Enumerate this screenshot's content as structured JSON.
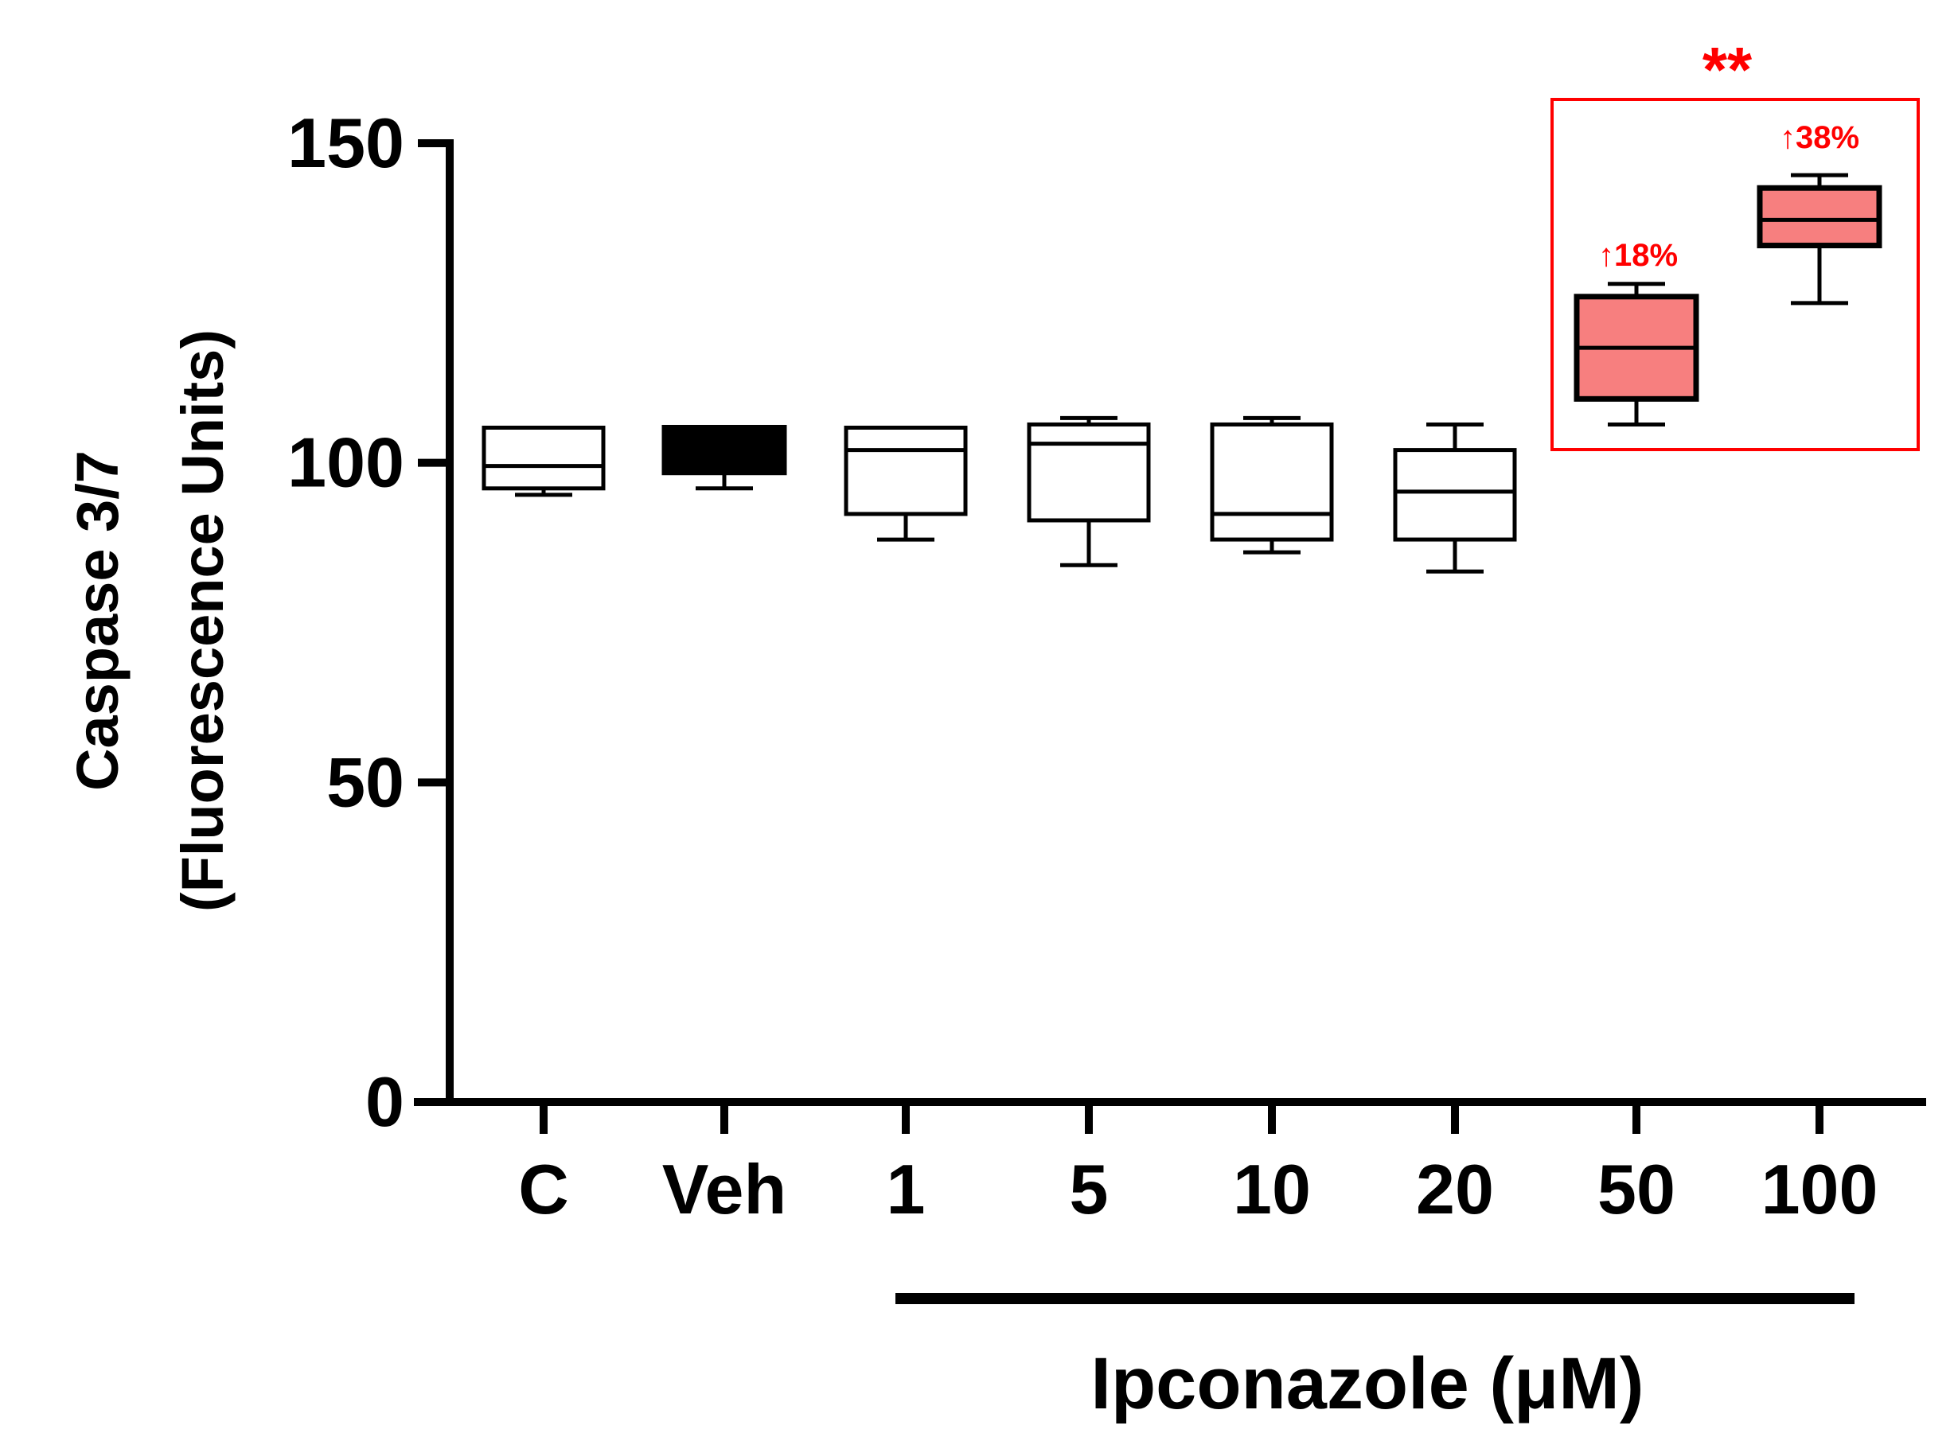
{
  "chart_data": {
    "type": "box",
    "ylabel_line1": "Caspase 3/7",
    "ylabel_line2": "(Fluorescence Units)",
    "xlabel": "Ipconazole (μM)",
    "ylim": [
      0,
      150
    ],
    "yticks": [
      "0",
      "50",
      "100",
      "150"
    ],
    "categories": [
      "C",
      "Veh",
      "1",
      "5",
      "10",
      "20",
      "50",
      "100"
    ],
    "boxes": [
      {
        "category": "C",
        "min": 95,
        "q1": 96,
        "median": 99.5,
        "q3": 105.5,
        "max": 105.5,
        "fill": "#ffffff",
        "stroke": "#000000"
      },
      {
        "category": "Veh",
        "min": 96,
        "q1": 98.5,
        "median": 102,
        "q3": 105.5,
        "max": 105.5,
        "fill": "#000000",
        "stroke": "#000000"
      },
      {
        "category": "1",
        "min": 88,
        "q1": 92,
        "median": 102,
        "q3": 105.5,
        "max": 105.5,
        "fill": "#ffffff",
        "stroke": "#000000"
      },
      {
        "category": "5",
        "min": 84,
        "q1": 91,
        "median": 103,
        "q3": 106,
        "max": 107,
        "fill": "#ffffff",
        "stroke": "#000000"
      },
      {
        "category": "10",
        "min": 86,
        "q1": 88,
        "median": 92,
        "q3": 106,
        "max": 107,
        "fill": "#ffffff",
        "stroke": "#000000"
      },
      {
        "category": "20",
        "min": 83,
        "q1": 88,
        "median": 95.5,
        "q3": 102,
        "max": 106,
        "fill": "#ffffff",
        "stroke": "#000000"
      },
      {
        "category": "50",
        "min": 106,
        "q1": 110,
        "median": 118,
        "q3": 126,
        "max": 128,
        "fill": "#f77f7f",
        "stroke": "#000000"
      },
      {
        "category": "100",
        "min": 125,
        "q1": 134,
        "median": 138,
        "q3": 143,
        "max": 145,
        "fill": "#f77f7f",
        "stroke": "#000000"
      }
    ],
    "annotations": {
      "significance": "**",
      "pct_50": "↑18%",
      "pct_100": "↑38%"
    },
    "highlight_color": "#ff0000",
    "grid": false
  }
}
